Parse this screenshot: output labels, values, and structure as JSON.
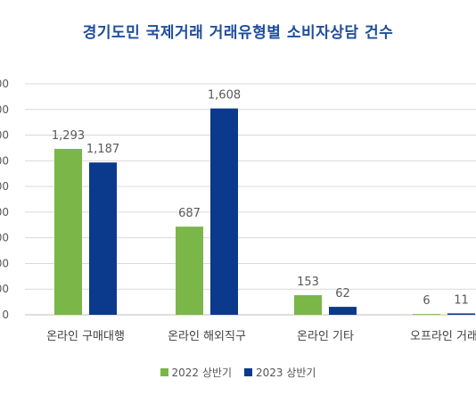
{
  "chart_data": {
    "type": "bar",
    "title": "경기도민 국제거래 거래유형별 소비자상담 건수",
    "categories": [
      "온라인 구매대행",
      "온라인 해외직구",
      "온라인 기타",
      "오프라인 거래"
    ],
    "series": [
      {
        "name": "2022 상반기",
        "values": [
          1293,
          687,
          153,
          6
        ],
        "color": "#7ab648"
      },
      {
        "name": "2023 상반기",
        "values": [
          1187,
          1608,
          62,
          11
        ],
        "color": "#0b3a8c"
      }
    ],
    "ylim": [
      0,
      1800
    ],
    "ytick_step": 200,
    "grid": true,
    "legend": "bottom",
    "xlabel": "",
    "ylabel": ""
  }
}
